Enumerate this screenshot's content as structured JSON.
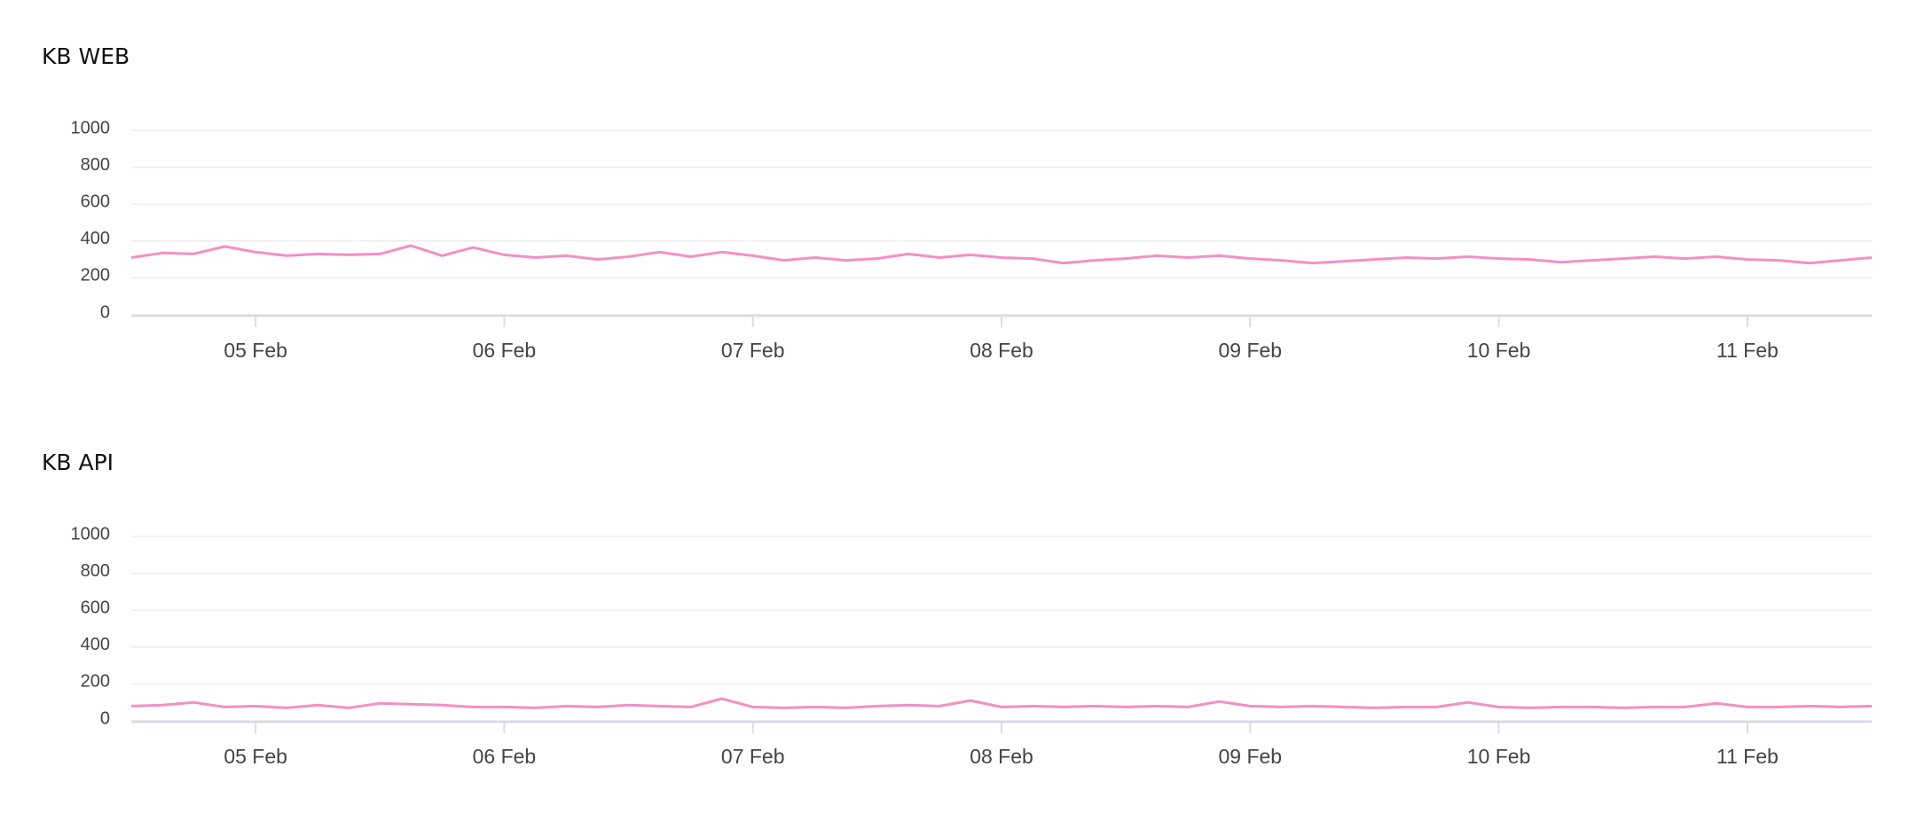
{
  "chart_data": [
    {
      "type": "line",
      "title": "KB WEB",
      "x": [
        4.5,
        4.625,
        4.75,
        4.875,
        5,
        5.125,
        5.25,
        5.375,
        5.5,
        5.625,
        5.75,
        5.875,
        6,
        6.125,
        6.25,
        6.375,
        6.5,
        6.625,
        6.75,
        6.875,
        7,
        7.125,
        7.25,
        7.375,
        7.5,
        7.625,
        7.75,
        7.875,
        8,
        8.125,
        8.25,
        8.375,
        8.5,
        8.625,
        8.75,
        8.875,
        9,
        9.125,
        9.25,
        9.375,
        9.5,
        9.625,
        9.75,
        9.875,
        10,
        10.125,
        10.25,
        10.375,
        10.5,
        10.625,
        10.75,
        10.875,
        11,
        11.125,
        11.25,
        11.375,
        11.5
      ],
      "values": [
        310,
        335,
        330,
        370,
        340,
        320,
        330,
        325,
        330,
        375,
        320,
        365,
        325,
        310,
        320,
        300,
        315,
        340,
        315,
        340,
        320,
        295,
        310,
        295,
        305,
        330,
        310,
        325,
        310,
        305,
        280,
        295,
        305,
        320,
        310,
        320,
        305,
        295,
        280,
        290,
        300,
        310,
        305,
        315,
        305,
        300,
        285,
        295,
        305,
        315,
        305,
        315,
        300,
        295,
        280,
        295,
        310
      ],
      "color": "#f48fc4",
      "xlim": [
        4.5,
        11.5
      ],
      "xticks": [
        {
          "value": 5,
          "label": "05 Feb"
        },
        {
          "value": 6,
          "label": "06 Feb"
        },
        {
          "value": 7,
          "label": "07 Feb"
        },
        {
          "value": 8,
          "label": "08 Feb"
        },
        {
          "value": 9,
          "label": "09 Feb"
        },
        {
          "value": 10,
          "label": "10 Feb"
        },
        {
          "value": 11,
          "label": "11 Feb"
        }
      ],
      "ylim": [
        0,
        1000
      ],
      "yticks": [
        0,
        200,
        400,
        600,
        800,
        1000
      ],
      "grid": true
    },
    {
      "type": "line",
      "title": "KB API",
      "x": [
        4.5,
        4.625,
        4.75,
        4.875,
        5,
        5.125,
        5.25,
        5.375,
        5.5,
        5.625,
        5.75,
        5.875,
        6,
        6.125,
        6.25,
        6.375,
        6.5,
        6.625,
        6.75,
        6.875,
        7,
        7.125,
        7.25,
        7.375,
        7.5,
        7.625,
        7.75,
        7.875,
        8,
        8.125,
        8.25,
        8.375,
        8.5,
        8.625,
        8.75,
        8.875,
        9,
        9.125,
        9.25,
        9.375,
        9.5,
        9.625,
        9.75,
        9.875,
        10,
        10.125,
        10.25,
        10.375,
        10.5,
        10.625,
        10.75,
        10.875,
        11,
        11.125,
        11.25,
        11.375,
        11.5
      ],
      "values": [
        80,
        85,
        100,
        75,
        80,
        70,
        85,
        70,
        95,
        90,
        85,
        75,
        75,
        70,
        80,
        75,
        85,
        80,
        75,
        120,
        75,
        70,
        75,
        70,
        80,
        85,
        80,
        110,
        75,
        80,
        75,
        80,
        75,
        80,
        75,
        105,
        80,
        75,
        80,
        75,
        70,
        75,
        75,
        100,
        75,
        70,
        75,
        75,
        70,
        75,
        75,
        95,
        75,
        75,
        80,
        75,
        80
      ],
      "color": "#f48fc4",
      "xlim": [
        4.5,
        11.5
      ],
      "xticks": [
        {
          "value": 5,
          "label": "05 Feb"
        },
        {
          "value": 6,
          "label": "06 Feb"
        },
        {
          "value": 7,
          "label": "07 Feb"
        },
        {
          "value": 8,
          "label": "08 Feb"
        },
        {
          "value": 9,
          "label": "09 Feb"
        },
        {
          "value": 10,
          "label": "10 Feb"
        },
        {
          "value": 11,
          "label": "11 Feb"
        }
      ],
      "ylim": [
        0,
        1000
      ],
      "yticks": [
        0,
        200,
        400,
        600,
        800,
        1000
      ],
      "grid": true
    }
  ]
}
